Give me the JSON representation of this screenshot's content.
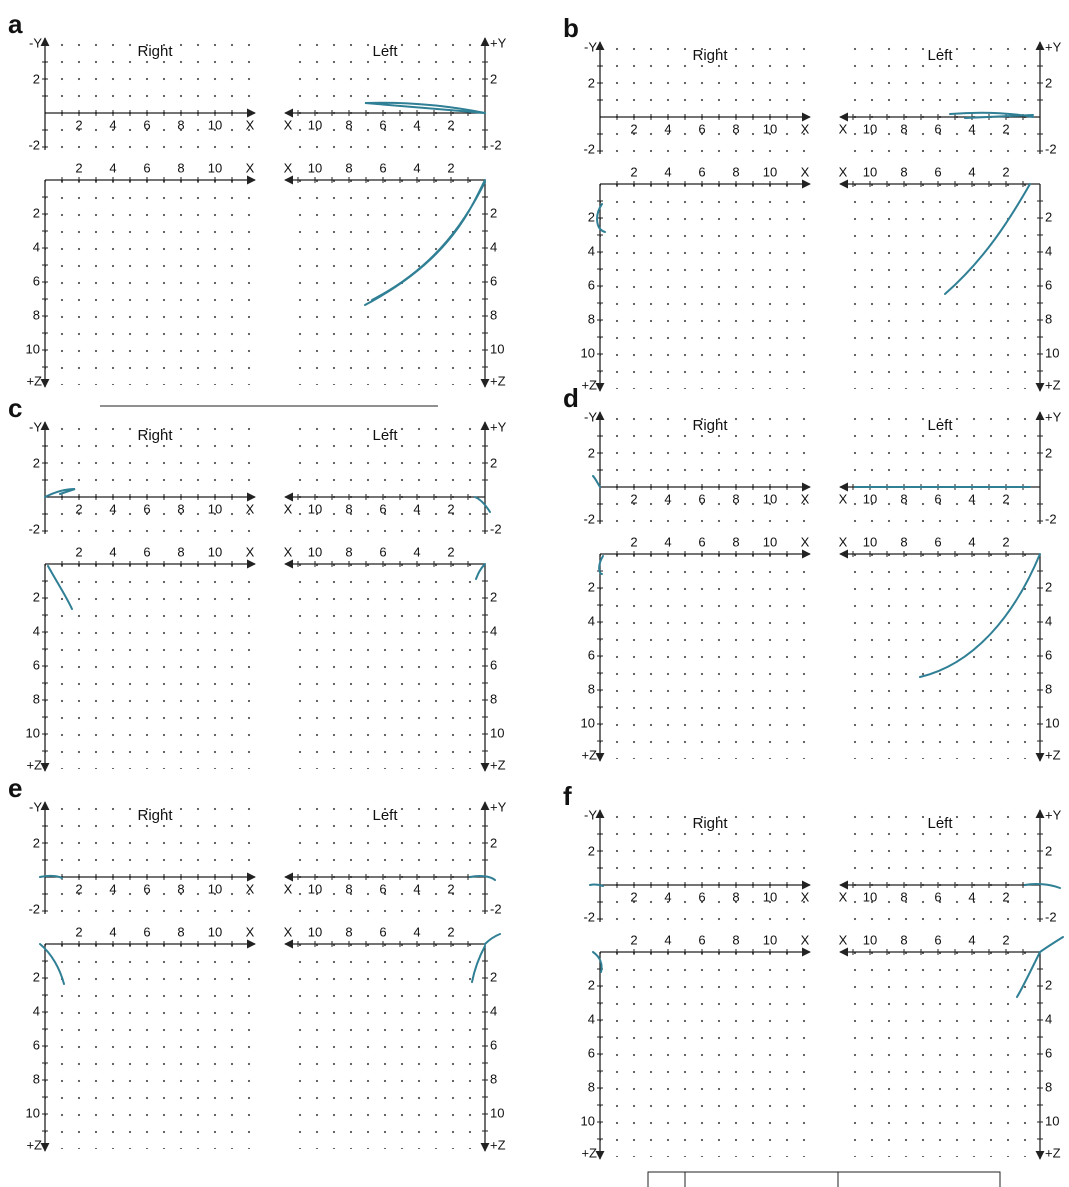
{
  "panels": [
    {
      "letter": "a"
    },
    {
      "letter": "b"
    },
    {
      "letter": "c"
    },
    {
      "letter": "d"
    },
    {
      "letter": "e"
    },
    {
      "letter": "f"
    }
  ],
  "labels": {
    "right": "Right",
    "left": "Left",
    "neg_y": "-Y",
    "pos_y": "+Y",
    "pos_z": "+Z",
    "y_ticks": [
      "2",
      "-2"
    ],
    "z_ticks": [
      "2",
      "4",
      "6",
      "8",
      "10"
    ],
    "x_ticks_right": [
      "2",
      "4",
      "6",
      "8",
      "10",
      "X"
    ],
    "x_ticks_left": [
      "X",
      "10",
      "8",
      "6",
      "4",
      "2"
    ]
  }
}
